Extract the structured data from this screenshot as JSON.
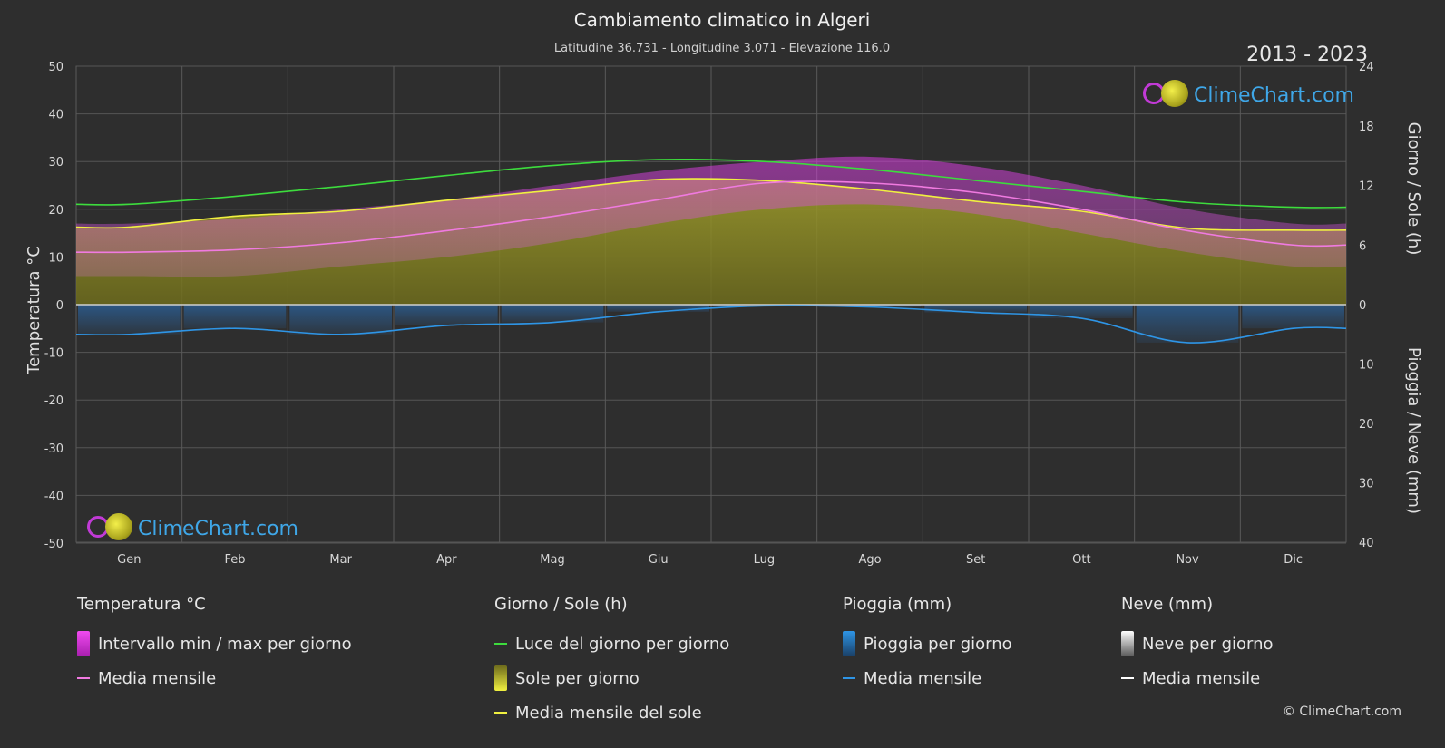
{
  "title": "Cambiamento climatico in Algeri",
  "subtitle": "Latitudine 36.731 - Longitudine 3.071 - Elevazione 116.0",
  "years": "2013 - 2023",
  "brand": "ClimeChart.com",
  "copyright": "© ClimeChart.com",
  "colors": {
    "background": "#2e2e2e",
    "temp_range": "#d83adf",
    "temp_mean": "#f07ae0",
    "daylight": "#3ddc3d",
    "sunshine_fill": "#8f8f26",
    "sunshine_mean": "#f0f040",
    "rain": "#2a78c9",
    "rain_mean": "#2e95e6",
    "snow_mean": "#ffffff"
  },
  "legend": {
    "temperature": {
      "header": "Temperatura °C",
      "items": [
        "Intervallo min / max per giorno",
        "Media mensile"
      ]
    },
    "sun": {
      "header": "Giorno / Sole (h)",
      "items": [
        "Luce del giorno per giorno",
        "Sole per giorno",
        "Media mensile del sole"
      ]
    },
    "rain": {
      "header": "Pioggia (mm)",
      "items": [
        "Pioggia per giorno",
        "Media mensile"
      ]
    },
    "snow": {
      "header": "Neve (mm)",
      "items": [
        "Neve per giorno",
        "Media mensile"
      ]
    }
  },
  "chart_data": {
    "type": "area",
    "categories": [
      "Gen",
      "Feb",
      "Mar",
      "Apr",
      "Mag",
      "Giu",
      "Lug",
      "Ago",
      "Set",
      "Ott",
      "Nov",
      "Dic"
    ],
    "y_left": {
      "label": "Temperatura °C",
      "range": [
        -50,
        50
      ],
      "ticks": [
        50,
        40,
        30,
        20,
        10,
        0,
        -10,
        -20,
        -30,
        -40,
        -50
      ]
    },
    "y_right_top": {
      "label": "Giorno / Sole (h)",
      "range": [
        0,
        24
      ],
      "ticks": [
        24,
        18,
        12,
        6,
        0
      ]
    },
    "y_right_bottom": {
      "label": "Pioggia / Neve (mm)",
      "range": [
        0,
        40
      ],
      "ticks": [
        0,
        10,
        20,
        30,
        40
      ]
    },
    "grid": true,
    "series": [
      {
        "name": "Intervallo min / max per giorno",
        "axis": "temperature",
        "min": [
          6,
          6,
          8,
          10,
          13,
          17,
          20,
          21,
          19,
          15,
          11,
          8
        ],
        "max": [
          17,
          18,
          20,
          22,
          25,
          28,
          30,
          31,
          29,
          25,
          20,
          17
        ]
      },
      {
        "name": "Media mensile",
        "axis": "temperature",
        "values": [
          11,
          11.5,
          13,
          15.5,
          18.5,
          22,
          25.5,
          25.5,
          23.5,
          20,
          15.5,
          12.5
        ]
      },
      {
        "name": "Luce del giorno per giorno",
        "axis": "hours",
        "values": [
          10.1,
          10.9,
          11.9,
          13.0,
          14.0,
          14.6,
          14.4,
          13.6,
          12.5,
          11.4,
          10.3,
          9.8
        ]
      },
      {
        "name": "Sole per giorno",
        "axis": "hours",
        "values": [
          7.8,
          8.9,
          9.4,
          10.5,
          11.5,
          12.6,
          12.5,
          11.6,
          10.4,
          9.4,
          7.7,
          7.5
        ]
      },
      {
        "name": "Media mensile del sole",
        "axis": "hours",
        "values": [
          7.8,
          8.9,
          9.4,
          10.5,
          11.5,
          12.6,
          12.5,
          11.6,
          10.4,
          9.4,
          7.7,
          7.5
        ]
      },
      {
        "name": "Pioggia per giorno",
        "axis": "precip",
        "values": [
          5,
          4,
          5,
          3.5,
          3,
          1.2,
          0.2,
          0.4,
          1.3,
          2.3,
          6.4,
          4
        ]
      },
      {
        "name": "Media mensile",
        "axis": "precip",
        "values": [
          5,
          4,
          5,
          3.5,
          3,
          1.2,
          0.2,
          0.4,
          1.3,
          2.3,
          6.4,
          4
        ]
      }
    ]
  }
}
